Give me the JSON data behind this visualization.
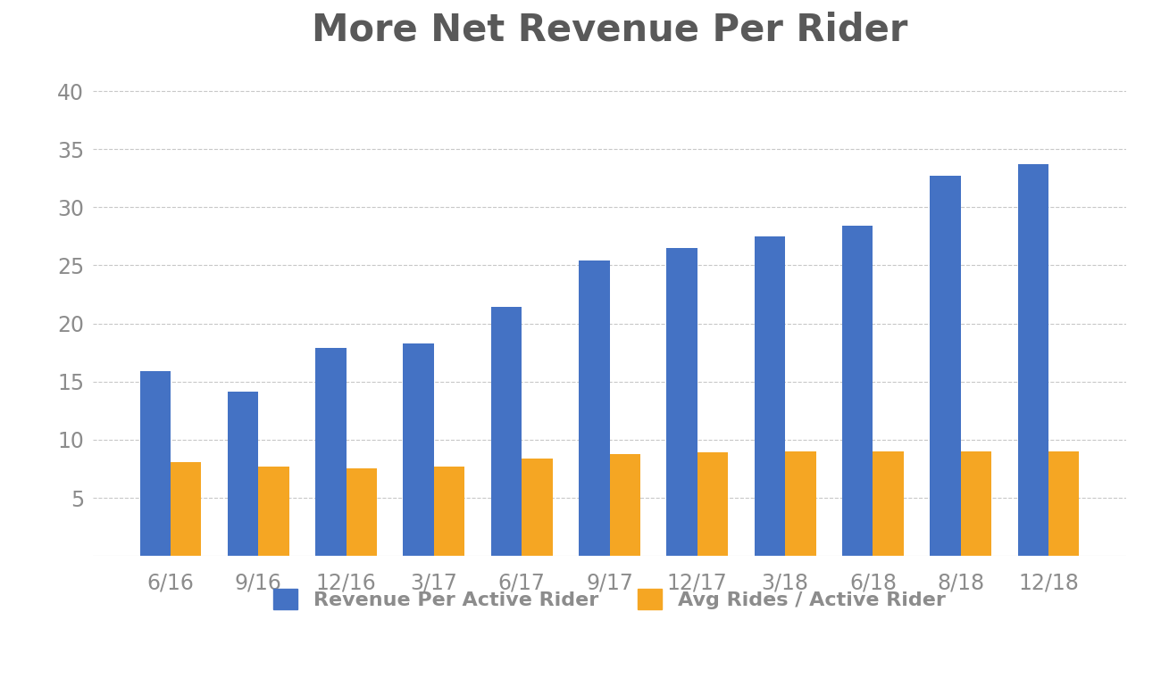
{
  "title": "More Net Revenue Per Rider",
  "categories": [
    "6/16",
    "9/16",
    "12/16",
    "3/17",
    "6/17",
    "9/17",
    "12/17",
    "3/18",
    "6/18",
    "8/18",
    "12/18"
  ],
  "revenue_per_rider": [
    15.9,
    14.1,
    17.9,
    18.3,
    21.4,
    25.4,
    26.5,
    27.5,
    28.4,
    32.7,
    33.7
  ],
  "avg_rides": [
    8.1,
    7.7,
    7.5,
    7.7,
    8.4,
    8.8,
    8.9,
    9.0,
    9.0,
    9.0,
    9.0
  ],
  "bar_color_blue": "#4472C4",
  "bar_color_orange": "#F5A623",
  "background_color": "#FFFFFF",
  "title_color": "#595959",
  "tick_color": "#8C8C8C",
  "gridline_color": "#C8C8C8",
  "ylim": [
    0,
    42
  ],
  "yticks": [
    5,
    10,
    15,
    20,
    25,
    30,
    35,
    40
  ],
  "legend_label_blue": "Revenue Per Active Rider",
  "legend_label_orange": "Avg Rides / Active Rider",
  "title_fontsize": 30,
  "tick_fontsize": 17,
  "legend_fontsize": 16
}
